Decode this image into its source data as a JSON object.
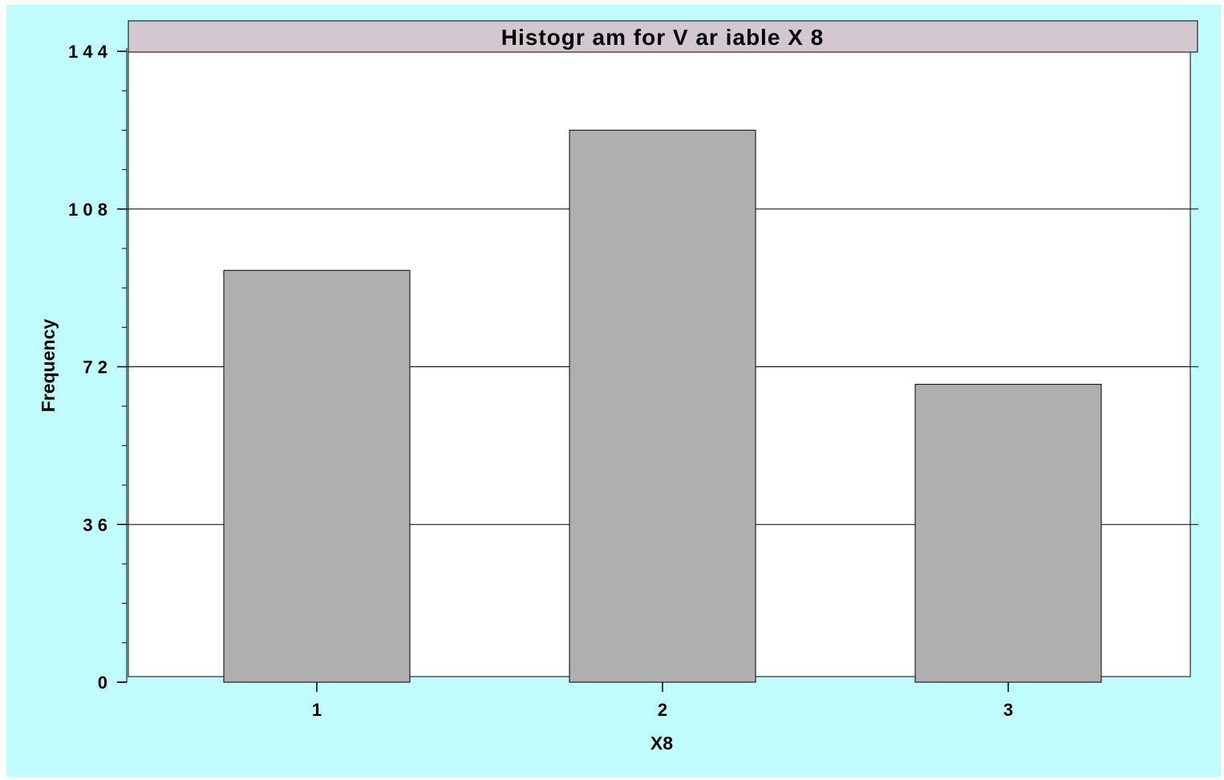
{
  "chart_data": {
    "type": "bar",
    "title": "Histogr am  for  V ar iable X 8",
    "xlabel": "X8",
    "ylabel": "Frequency",
    "categories": [
      "1",
      "2",
      "3"
    ],
    "values": [
      94,
      126,
      68
    ],
    "ylim": [
      0,
      144
    ],
    "yticks": [
      0,
      36,
      72,
      108,
      144
    ],
    "yticks_labels": [
      "0",
      "3 6",
      "7 2",
      "1 0 8",
      "1 4 4"
    ],
    "grid": true,
    "colors": {
      "background": "#c0fcfc",
      "plot": "#ffffff",
      "bar_fill": "#afafaf",
      "title_band": "#d4c8d0",
      "line": "#000000"
    }
  }
}
